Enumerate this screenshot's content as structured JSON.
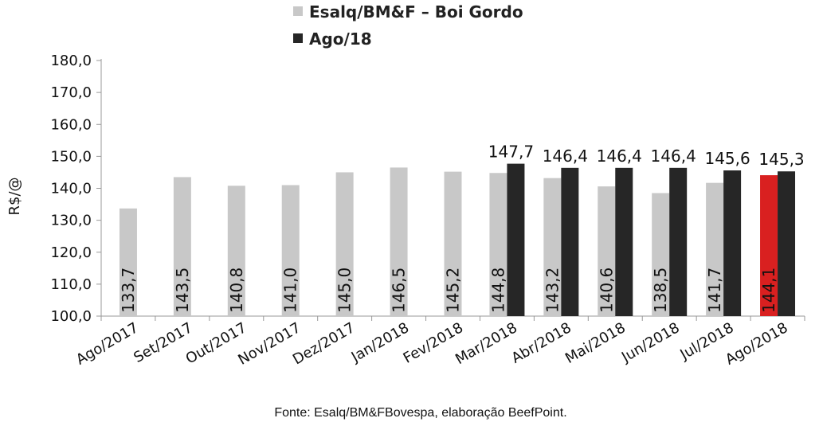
{
  "chart_data": {
    "type": "bar",
    "categories": [
      "Ago/2017",
      "Set/2017",
      "Out/2017",
      "Nov/2017",
      "Dez/2017",
      "Jan/2018",
      "Fev/2018",
      "Mar/2018",
      "Abr/2018",
      "Mai/2018",
      "Jun/2018",
      "Jul/2018",
      "Ago/2018"
    ],
    "series": [
      {
        "name": "Esalq/BM&F – Boi Gordo",
        "values": [
          133.7,
          143.5,
          140.8,
          141.0,
          145.0,
          146.5,
          145.2,
          144.8,
          143.2,
          140.6,
          138.5,
          141.7,
          144.1
        ],
        "labels": [
          "133,7",
          "143,5",
          "140,8",
          "141,0",
          "145,0",
          "146,5",
          "145,2",
          "144,8",
          "143,2",
          "140,6",
          "138,5",
          "141,7",
          "144,1"
        ],
        "color": "#c8c8c8",
        "highlight": {
          "index": 12,
          "color": "#d92020"
        }
      },
      {
        "name": "Ago/18",
        "values": [
          null,
          null,
          null,
          null,
          null,
          null,
          null,
          147.7,
          146.4,
          146.4,
          146.4,
          145.6,
          145.3
        ],
        "labels": [
          "",
          "",
          "",
          "",
          "",
          "",
          "",
          "147,7",
          "146,4",
          "146,4",
          "146,4",
          "145,6",
          "145,3"
        ],
        "color": "#262626"
      }
    ],
    "ylabel": "R$/@",
    "ylim": [
      100,
      180
    ],
    "yticks": [
      "100,0",
      "110,0",
      "120,0",
      "130,0",
      "140,0",
      "150,0",
      "160,0",
      "170,0",
      "180,0"
    ],
    "legend_position": "top",
    "grid": false,
    "source": "Fonte: Esalq/BM&FBovespa, elaboração BeefPoint."
  }
}
